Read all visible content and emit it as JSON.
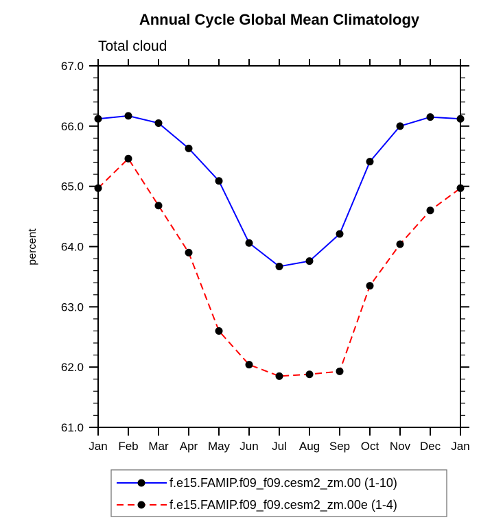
{
  "page": {
    "background": "#ffffff"
  },
  "chart_data": {
    "type": "line",
    "title": "Annual Cycle Global Mean Climatology",
    "subtitle": "Total cloud",
    "xlabel": "",
    "ylabel": "percent",
    "categories": [
      "Jan",
      "Feb",
      "Mar",
      "Apr",
      "May",
      "Jun",
      "Jul",
      "Aug",
      "Sep",
      "Oct",
      "Nov",
      "Dec",
      "Jan"
    ],
    "y_ticks": [
      "61.0",
      "62.0",
      "63.0",
      "64.0",
      "65.0",
      "66.0",
      "67.0"
    ],
    "ylim": [
      61.0,
      67.0
    ],
    "ytick_major_interval": 1.0,
    "ytick_minor_interval": 0.2,
    "grid": false,
    "axis_color": "#000000",
    "marker_shape": "filled-circle",
    "legend_position": "bottom",
    "legend_border_color": "#777777",
    "series": [
      {
        "name": "f.e15.FAMIP.f09_f09.cesm2_zm.00 (1-10)",
        "color": "#0000ff",
        "line_style": "solid",
        "marker": "circle",
        "marker_color": "#000000",
        "values": [
          66.12,
          66.17,
          66.05,
          65.63,
          65.09,
          64.06,
          63.67,
          63.76,
          64.21,
          65.41,
          66.0,
          66.15,
          66.12
        ]
      },
      {
        "name": "f.e15.FAMIP.f09_f09.cesm2_zm.00e (1-4)",
        "color": "#ff0000",
        "line_style": "dashed",
        "marker": "circle",
        "marker_color": "#000000",
        "values": [
          64.97,
          65.46,
          64.68,
          63.9,
          62.6,
          62.04,
          61.85,
          61.88,
          61.93,
          63.35,
          64.04,
          64.6,
          64.97
        ]
      }
    ]
  }
}
